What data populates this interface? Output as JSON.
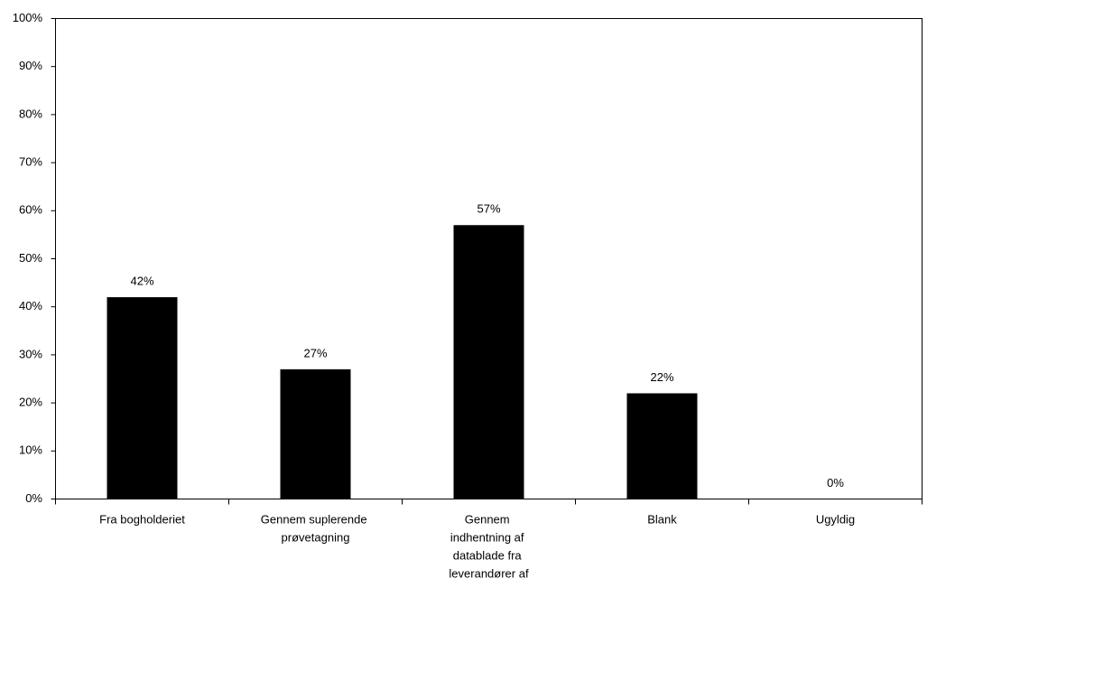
{
  "chart_data": {
    "type": "bar",
    "categories": [
      "Fra bogholderiet",
      "Gennem suplerende prøvetagning",
      "Gennem indhentning af datablade fra leverandører af",
      "Blank",
      "Ugyldig"
    ],
    "values": [
      42,
      27,
      57,
      22,
      0
    ],
    "value_labels": [
      "42%",
      "27%",
      "57%",
      "22%",
      "0%"
    ],
    "color": "#000000",
    "ylim": [
      0,
      100
    ],
    "yticks": [
      {
        "value": 0,
        "label": "0%"
      },
      {
        "value": 10,
        "label": "10%"
      },
      {
        "value": 20,
        "label": "20%"
      },
      {
        "value": 30,
        "label": "30%"
      },
      {
        "value": 40,
        "label": "40%"
      },
      {
        "value": 50,
        "label": "50%"
      },
      {
        "value": 60,
        "label": "60%"
      },
      {
        "value": 70,
        "label": "70%"
      },
      {
        "value": 80,
        "label": "80%"
      },
      {
        "value": 90,
        "label": "90%"
      },
      {
        "value": 100,
        "label": "100%"
      }
    ],
    "grid": false
  }
}
